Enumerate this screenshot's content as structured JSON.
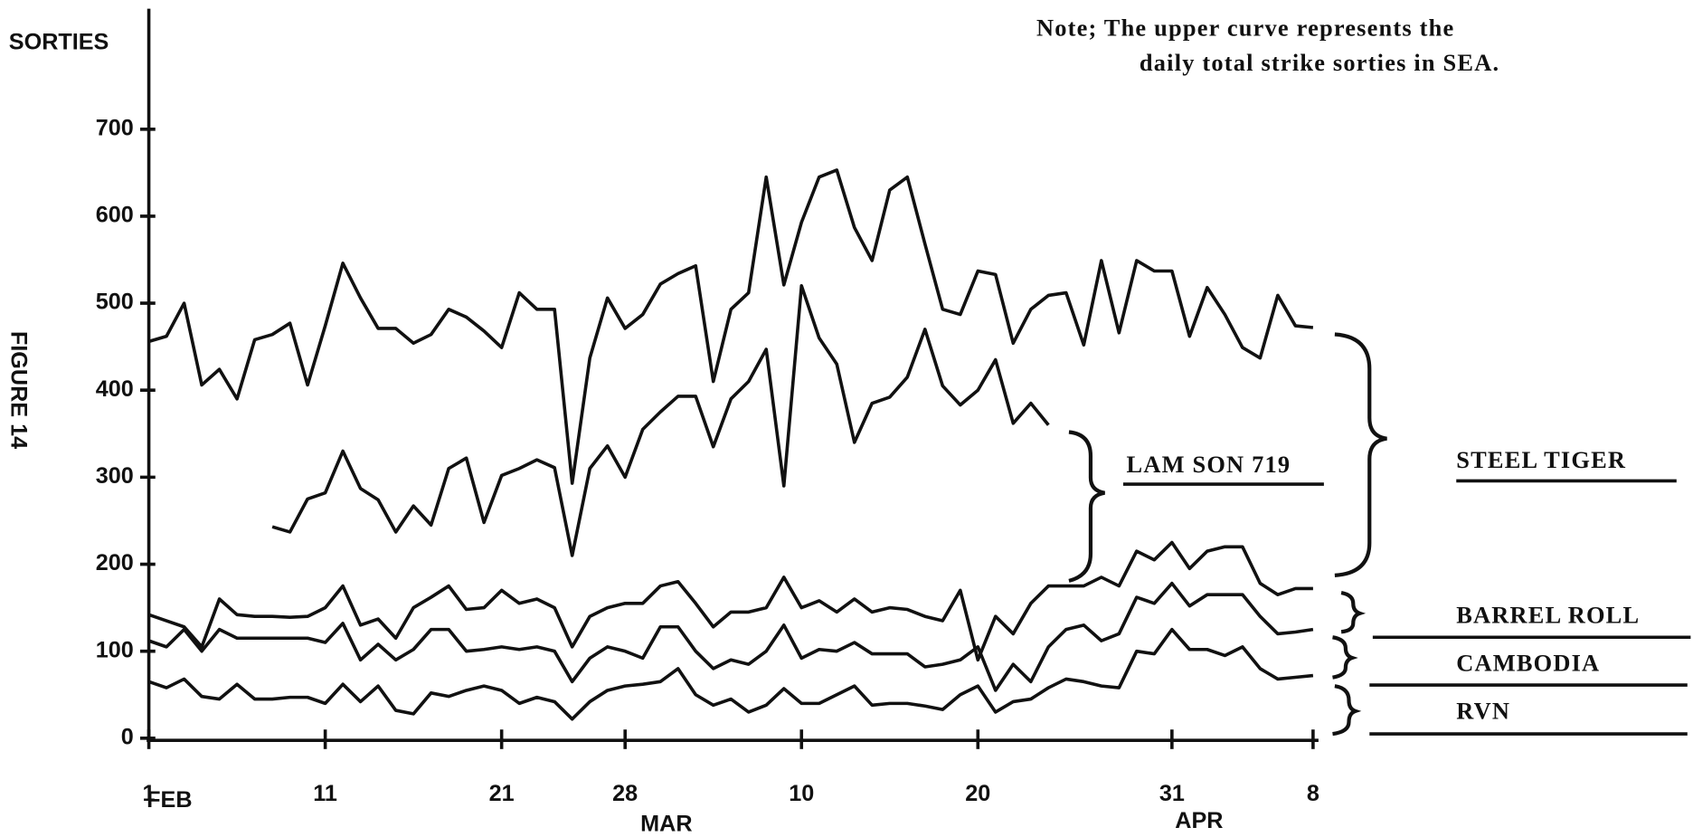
{
  "chart_data": {
    "type": "line",
    "y_label": "SORTIES",
    "note": [
      "Note;  The upper curve represents  the",
      "daily total strike sorties in SEA."
    ],
    "figure_label": "FIGURE 14",
    "month_labels": [
      "FEB",
      "MAR",
      "APR"
    ],
    "annotations": [
      "LAM SON 719",
      "STEEL TIGER",
      "BARREL ROLL",
      "CAMBODIA",
      "RVN"
    ],
    "xlim": [
      1,
      67
    ],
    "xticks": [
      1,
      11,
      21,
      28,
      {
        "value": 38,
        "label": "10"
      },
      {
        "value": 48,
        "label": "20"
      },
      {
        "value": 59,
        "label": "31"
      },
      {
        "value": 67,
        "label": "8"
      }
    ],
    "ylim": [
      0,
      700
    ],
    "yticks": [
      0,
      100,
      200,
      300,
      400,
      500,
      600,
      700
    ],
    "x": [
      1,
      2,
      3,
      4,
      5,
      6,
      7,
      8,
      9,
      10,
      11,
      12,
      13,
      14,
      15,
      16,
      17,
      18,
      19,
      20,
      21,
      22,
      23,
      24,
      25,
      26,
      27,
      28,
      29,
      30,
      31,
      32,
      33,
      34,
      35,
      36,
      37,
      38,
      39,
      40,
      41,
      42,
      43,
      44,
      45,
      46,
      47,
      48,
      49,
      50,
      51,
      52,
      53,
      54,
      55,
      56,
      57,
      58,
      59,
      60,
      61,
      62,
      63,
      64,
      65,
      66,
      67
    ],
    "series": [
      {
        "color": "#111111",
        "values": [
          456,
          462,
          500,
          406,
          424,
          390,
          458,
          464,
          477,
          406,
          474,
          546,
          506,
          471,
          471,
          454,
          464,
          493,
          484,
          468,
          449,
          512,
          493,
          493,
          293,
          437,
          506,
          471,
          487,
          522,
          534,
          543,
          410,
          493,
          512,
          645,
          521,
          593,
          645,
          653,
          587,
          549,
          630,
          645,
          568,
          493,
          487,
          537,
          533,
          454,
          493,
          509,
          512,
          452,
          549,
          466,
          549,
          537,
          537,
          462,
          518,
          487,
          449,
          437,
          509,
          474,
          472
        ]
      },
      {
        "color": "#111111",
        "values": [
          null,
          null,
          null,
          null,
          null,
          null,
          null,
          243,
          237,
          275,
          282,
          330,
          287,
          274,
          237,
          267,
          245,
          310,
          322,
          248,
          302,
          310,
          320,
          311,
          210,
          310,
          336,
          300,
          355,
          375,
          393,
          393,
          335,
          390,
          410,
          447,
          290,
          520,
          460,
          430,
          340,
          385,
          392,
          415,
          470,
          405,
          383,
          400,
          435,
          362,
          385,
          360,
          null,
          null,
          null,
          null,
          null,
          null,
          null,
          null,
          null,
          null,
          null,
          null,
          null,
          null,
          null
        ]
      },
      {
        "color": "#111111",
        "values": [
          142,
          135,
          128,
          105,
          160,
          142,
          140,
          140,
          139,
          140,
          150,
          175,
          130,
          137,
          115,
          150,
          162,
          175,
          148,
          150,
          170,
          155,
          160,
          150,
          105,
          140,
          150,
          155,
          155,
          175,
          180,
          155,
          128,
          145,
          145,
          150,
          185,
          150,
          158,
          145,
          160,
          145,
          150,
          148,
          140,
          135,
          170,
          90,
          140,
          120,
          155,
          175,
          175,
          175,
          185,
          175,
          215,
          205,
          225,
          195,
          215,
          220,
          220,
          178,
          165,
          172,
          172
        ]
      },
      {
        "color": "#111111",
        "values": [
          112,
          105,
          125,
          100,
          125,
          115,
          115,
          115,
          115,
          115,
          110,
          132,
          90,
          108,
          90,
          102,
          125,
          125,
          100,
          102,
          105,
          102,
          105,
          100,
          65,
          92,
          105,
          100,
          92,
          128,
          128,
          100,
          80,
          90,
          85,
          100,
          130,
          92,
          102,
          100,
          110,
          97,
          97,
          97,
          82,
          85,
          90,
          105,
          55,
          85,
          65,
          105,
          125,
          130,
          112,
          120,
          162,
          155,
          178,
          152,
          165,
          165,
          165,
          140,
          120,
          122,
          125
        ]
      },
      {
        "color": "#111111",
        "values": [
          65,
          58,
          68,
          48,
          45,
          62,
          45,
          45,
          47,
          47,
          40,
          62,
          42,
          60,
          32,
          28,
          52,
          48,
          55,
          60,
          55,
          40,
          47,
          42,
          22,
          42,
          55,
          60,
          62,
          65,
          80,
          50,
          38,
          45,
          30,
          38,
          57,
          40,
          40,
          50,
          60,
          38,
          40,
          40,
          37,
          33,
          50,
          60,
          30,
          42,
          45,
          58,
          68,
          65,
          60,
          58,
          100,
          97,
          125,
          102,
          102,
          95,
          105,
          80,
          68,
          70,
          72
        ]
      }
    ]
  }
}
